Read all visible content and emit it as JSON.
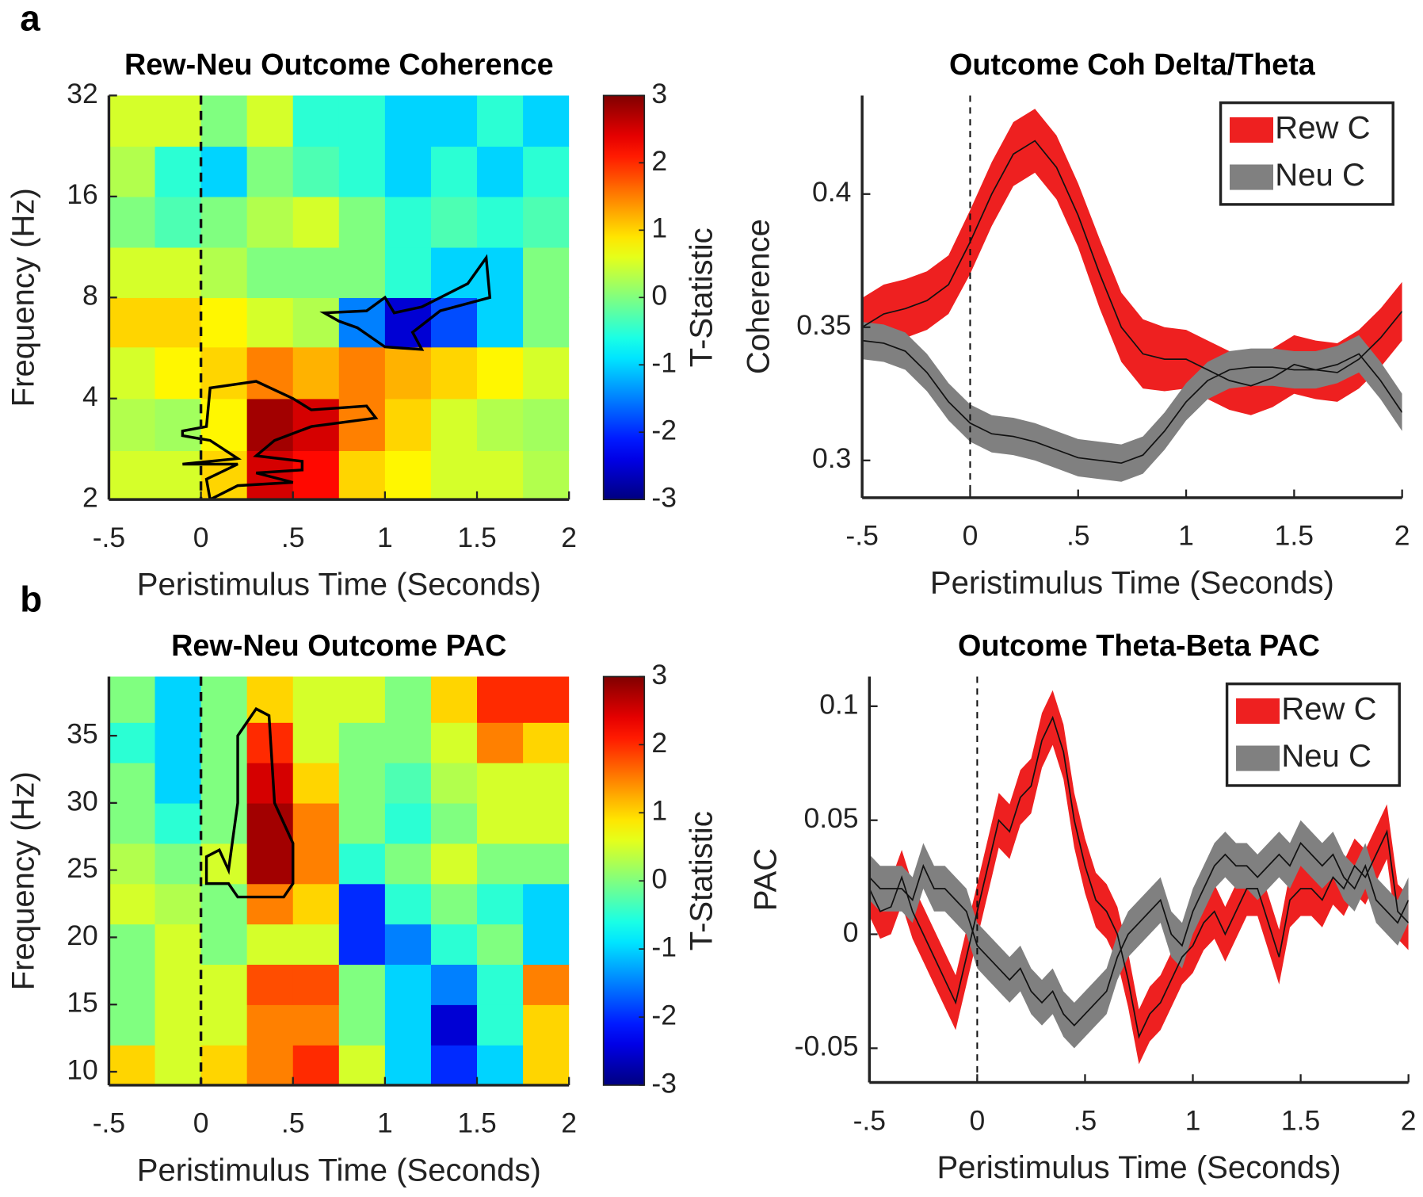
{
  "chart_data": [
    {
      "type": "heatmap",
      "panel": "a",
      "title": "Rew-Neu Outcome Coherence",
      "xlabel": "Peristimulus Time (Seconds)",
      "ylabel": "Frequency (Hz)",
      "colorbar_label": "T-Statistic",
      "yscale": "log",
      "xlim": [
        -0.5,
        2
      ],
      "ylim": [
        2,
        32
      ],
      "xticks": [
        {
          "value": -0.5,
          "label": "-.5"
        },
        0,
        {
          "value": 0.5,
          "label": ".5"
        },
        1,
        1.5,
        2
      ],
      "yticks": [
        2,
        4,
        8,
        16,
        32
      ],
      "vline": 0,
      "clim": [
        -3,
        3
      ],
      "cticks": [
        -3,
        -2,
        -1,
        0,
        1,
        2,
        3
      ],
      "x_edges": [
        -0.5,
        -0.25,
        0,
        0.25,
        0.5,
        0.75,
        1,
        1.25,
        1.5,
        1.75,
        2
      ],
      "y_edges": [
        2,
        2.8,
        4,
        5.7,
        8,
        11.3,
        16,
        22.6,
        32
      ],
      "z": [
        [
          0.5,
          0.5,
          1,
          2.5,
          2.2,
          1,
          0.8,
          0.5,
          0.5,
          0.3
        ],
        [
          0.3,
          0.2,
          0.8,
          2.8,
          2.5,
          1.5,
          1,
          0.5,
          0.3,
          0.2
        ],
        [
          0.5,
          0.8,
          1,
          1.5,
          1.2,
          1.5,
          1.2,
          1,
          0.8,
          0.5
        ],
        [
          1,
          1,
          0.8,
          0.5,
          0.3,
          -1.5,
          -2.5,
          -1.8,
          -1,
          0
        ],
        [
          0.5,
          0.5,
          0.3,
          0,
          0,
          0,
          -0.5,
          -1,
          -1,
          0
        ],
        [
          0,
          -0.3,
          0,
          0.3,
          0.5,
          0,
          -0.5,
          -0.3,
          -0.5,
          -0.3
        ],
        [
          0.3,
          -0.5,
          -1,
          0,
          -0.3,
          -0.5,
          -1,
          -0.5,
          -1,
          -0.5
        ],
        [
          0.5,
          0.5,
          0,
          0.5,
          -0.5,
          -0.5,
          -1,
          -1,
          -0.5,
          -1
        ]
      ],
      "clusters": [
        [
          [
            -0.1,
            3.2
          ],
          [
            0.03,
            3.3
          ],
          [
            0.05,
            4.3
          ],
          [
            0.3,
            4.5
          ],
          [
            0.5,
            4.0
          ],
          [
            0.6,
            3.7
          ],
          [
            0.9,
            3.8
          ],
          [
            0.95,
            3.5
          ],
          [
            0.6,
            3.3
          ],
          [
            0.4,
            3.0
          ],
          [
            0.3,
            2.7
          ],
          [
            0.55,
            2.6
          ],
          [
            0.55,
            2.45
          ],
          [
            0.3,
            2.4
          ],
          [
            0.5,
            2.25
          ],
          [
            0.2,
            2.2
          ],
          [
            0.05,
            2.0
          ],
          [
            0.03,
            2.3
          ],
          [
            0.2,
            2.55
          ],
          [
            -0.1,
            2.55
          ],
          [
            0.2,
            2.65
          ],
          [
            0.05,
            3.0
          ],
          [
            -0.1,
            3.1
          ]
        ],
        [
          [
            0.67,
            7.2
          ],
          [
            0.9,
            7.3
          ],
          [
            1.0,
            8.0
          ],
          [
            1.05,
            7.2
          ],
          [
            1.2,
            7.5
          ],
          [
            1.45,
            8.8
          ],
          [
            1.55,
            10.5
          ],
          [
            1.57,
            8.0
          ],
          [
            1.3,
            7.3
          ],
          [
            1.15,
            6.3
          ],
          [
            1.2,
            5.6
          ],
          [
            1.0,
            5.7
          ],
          [
            0.85,
            6.5
          ],
          [
            0.75,
            6.8
          ]
        ]
      ]
    },
    {
      "type": "line",
      "title": "Outcome Coh Delta/Theta",
      "xlabel": "Peristimulus Time (Seconds)",
      "ylabel": "Coherence",
      "legend": "northeast",
      "xlim": [
        -0.5,
        2
      ],
      "ylim": [
        0.286,
        0.437
      ],
      "xticks": [
        {
          "value": -0.5,
          "label": "-.5"
        },
        0,
        {
          "value": 0.5,
          "label": ".5"
        },
        1,
        1.5,
        2
      ],
      "yticks": [
        0.3,
        0.35,
        0.4
      ],
      "vline": 0,
      "x": [
        -0.5,
        -0.4,
        -0.3,
        -0.2,
        -0.1,
        0,
        0.1,
        0.2,
        0.3,
        0.4,
        0.5,
        0.6,
        0.7,
        0.8,
        0.9,
        1,
        1.1,
        1.2,
        1.3,
        1.4,
        1.5,
        1.6,
        1.7,
        1.8,
        1.9,
        2
      ],
      "series": [
        {
          "name": "Rew C",
          "color": "#ee2020",
          "values": [
            0.35,
            0.355,
            0.357,
            0.36,
            0.366,
            0.382,
            0.4,
            0.415,
            0.42,
            0.41,
            0.392,
            0.37,
            0.35,
            0.34,
            0.338,
            0.338,
            0.334,
            0.33,
            0.328,
            0.331,
            0.336,
            0.334,
            0.333,
            0.338,
            0.346,
            0.356
          ],
          "error": [
            0.011,
            0.011,
            0.011,
            0.011,
            0.011,
            0.012,
            0.012,
            0.012,
            0.012,
            0.012,
            0.012,
            0.013,
            0.013,
            0.013,
            0.012,
            0.011,
            0.011,
            0.011,
            0.011,
            0.011,
            0.011,
            0.011,
            0.011,
            0.011,
            0.011,
            0.011
          ]
        },
        {
          "name": "Neu C",
          "color": "#808080",
          "values": [
            0.345,
            0.344,
            0.341,
            0.333,
            0.322,
            0.314,
            0.31,
            0.309,
            0.307,
            0.304,
            0.301,
            0.3,
            0.299,
            0.302,
            0.311,
            0.322,
            0.33,
            0.334,
            0.335,
            0.335,
            0.334,
            0.334,
            0.336,
            0.34,
            0.33,
            0.318
          ],
          "error": [
            0.007,
            0.007,
            0.007,
            0.007,
            0.007,
            0.007,
            0.007,
            0.007,
            0.007,
            0.007,
            0.007,
            0.007,
            0.007,
            0.007,
            0.007,
            0.007,
            0.007,
            0.007,
            0.007,
            0.007,
            0.007,
            0.007,
            0.007,
            0.007,
            0.007,
            0.007
          ]
        }
      ]
    },
    {
      "type": "heatmap",
      "panel": "b",
      "title": "Rew-Neu Outcome PAC",
      "xlabel": "Peristimulus Time (Seconds)",
      "ylabel": "Frequency (Hz)",
      "colorbar_label": "T-Statistic",
      "xlim": [
        -0.5,
        2
      ],
      "ylim": [
        9,
        39.4
      ],
      "xticks": [
        {
          "value": -0.5,
          "label": "-.5"
        },
        0,
        {
          "value": 0.5,
          "label": ".5"
        },
        1,
        1.5,
        2
      ],
      "yticks": [
        10,
        15,
        20,
        25,
        30,
        35
      ],
      "vline": 0,
      "clim": [
        -3,
        3
      ],
      "cticks": [
        -3,
        -2,
        -1,
        0,
        1,
        2,
        3
      ],
      "x_edges": [
        -0.5,
        -0.25,
        0,
        0.25,
        0.5,
        0.75,
        1,
        1.25,
        1.5,
        1.75,
        2
      ],
      "y_edges": [
        9,
        12,
        15,
        18,
        21,
        24,
        27,
        30,
        33,
        36,
        39.4
      ],
      "z": [
        [
          1,
          0.5,
          1,
          1.5,
          2,
          0.5,
          -1,
          -2,
          -1,
          1
        ],
        [
          0,
          0.5,
          0.5,
          1.5,
          1.5,
          0,
          -1,
          -2.5,
          -0.5,
          1
        ],
        [
          0,
          0.5,
          0.5,
          1.8,
          1.8,
          0,
          -1,
          -1.5,
          -0.5,
          1.5
        ],
        [
          0,
          0.5,
          0,
          0.5,
          0.5,
          -2,
          -1.5,
          -0.5,
          0,
          -1
        ],
        [
          0.5,
          0.3,
          0,
          1.5,
          1,
          -2,
          -0.5,
          0,
          -0.5,
          -1
        ],
        [
          0.3,
          0,
          0.5,
          2.8,
          1.5,
          -0.5,
          0,
          0.5,
          0,
          0
        ],
        [
          0,
          -0.5,
          0,
          2.8,
          1.5,
          0,
          -0.5,
          0,
          0.5,
          0.5
        ],
        [
          0,
          -1,
          0,
          2.5,
          1,
          0,
          -0.3,
          0.3,
          0.5,
          0.5
        ],
        [
          -0.5,
          -1,
          0,
          2,
          0.5,
          0,
          0,
          0.5,
          1.5,
          1
        ],
        [
          0,
          -1,
          0,
          1,
          0.5,
          0.5,
          0,
          1,
          2,
          2
        ]
      ],
      "clusters": [
        [
          [
            0.3,
            37
          ],
          [
            0.37,
            36.5
          ],
          [
            0.4,
            30
          ],
          [
            0.5,
            27
          ],
          [
            0.5,
            24
          ],
          [
            0.45,
            23
          ],
          [
            0.2,
            23
          ],
          [
            0.15,
            24
          ],
          [
            0.03,
            24
          ],
          [
            0.03,
            26
          ],
          [
            0.1,
            26.5
          ],
          [
            0.15,
            25
          ],
          [
            0.2,
            30
          ],
          [
            0.2,
            35
          ],
          [
            0.25,
            36
          ]
        ]
      ]
    },
    {
      "type": "line",
      "title": "Outcome Theta-Beta PAC",
      "xlabel": "Peristimulus Time (Seconds)",
      "ylabel": "PAC",
      "legend": "northeast",
      "xlim": [
        -0.5,
        2
      ],
      "ylim": [
        -0.065,
        0.113
      ],
      "xticks": [
        {
          "value": -0.5,
          "label": "-.5"
        },
        0,
        {
          "value": 0.5,
          "label": ".5"
        },
        1,
        1.5,
        2
      ],
      "yticks": [
        {
          "value": -0.05,
          "label": "-0.05"
        },
        0,
        0.05,
        0.1
      ],
      "vline": 0,
      "x": [
        -0.5,
        -0.45,
        -0.4,
        -0.35,
        -0.3,
        -0.25,
        -0.2,
        -0.15,
        -0.1,
        -0.05,
        0,
        0.05,
        0.1,
        0.15,
        0.2,
        0.25,
        0.3,
        0.35,
        0.4,
        0.45,
        0.5,
        0.55,
        0.6,
        0.65,
        0.7,
        0.75,
        0.8,
        0.85,
        0.9,
        0.95,
        1,
        1.05,
        1.1,
        1.15,
        1.2,
        1.25,
        1.3,
        1.35,
        1.4,
        1.45,
        1.5,
        1.55,
        1.6,
        1.65,
        1.7,
        1.75,
        1.8,
        1.85,
        1.9,
        1.95,
        2
      ],
      "series": [
        {
          "name": "Rew C",
          "color": "#ee2020",
          "values": [
            0.02,
            0.01,
            0.012,
            0.025,
            0.01,
            0,
            -0.01,
            -0.02,
            -0.03,
            -0.01,
            0.01,
            0.03,
            0.05,
            0.045,
            0.06,
            0.065,
            0.085,
            0.095,
            0.08,
            0.05,
            0.03,
            0.015,
            0.01,
            0,
            -0.02,
            -0.045,
            -0.035,
            -0.03,
            -0.02,
            -0.01,
            -0.005,
            0.005,
            0.01,
            0,
            0.01,
            0.02,
            0.02,
            0.005,
            -0.01,
            0.015,
            0.02,
            0.02,
            0.015,
            0.025,
            0.02,
            0.03,
            0.025,
            0.035,
            0.045,
            0.01,
            0.005
          ],
          "error": [
            0.012,
            0.012,
            0.012,
            0.012,
            0.012,
            0.012,
            0.012,
            0.012,
            0.012,
            0.012,
            0.012,
            0.012,
            0.012,
            0.012,
            0.012,
            0.012,
            0.012,
            0.012,
            0.012,
            0.012,
            0.012,
            0.012,
            0.012,
            0.012,
            0.012,
            0.012,
            0.012,
            0.012,
            0.012,
            0.012,
            0.012,
            0.012,
            0.012,
            0.012,
            0.012,
            0.012,
            0.012,
            0.012,
            0.012,
            0.012,
            0.012,
            0.012,
            0.012,
            0.012,
            0.012,
            0.012,
            0.012,
            0.012,
            0.012,
            0.012,
            0.012
          ]
        },
        {
          "name": "Neu C",
          "color": "#808080",
          "values": [
            0.025,
            0.02,
            0.02,
            0.02,
            0.015,
            0.03,
            0.02,
            0.02,
            0.015,
            0.01,
            -0.005,
            -0.01,
            -0.015,
            -0.02,
            -0.015,
            -0.025,
            -0.03,
            -0.025,
            -0.035,
            -0.04,
            -0.035,
            -0.03,
            -0.025,
            -0.01,
            0,
            0.005,
            0.01,
            0.015,
            0,
            -0.005,
            0.01,
            0.02,
            0.03,
            0.035,
            0.03,
            0.03,
            0.025,
            0.03,
            0.035,
            0.03,
            0.04,
            0.035,
            0.03,
            0.035,
            0.025,
            0.02,
            0.03,
            0.015,
            0.01,
            0.005,
            0.015
          ],
          "error": [
            0.01,
            0.01,
            0.01,
            0.01,
            0.01,
            0.01,
            0.01,
            0.01,
            0.01,
            0.01,
            0.01,
            0.01,
            0.01,
            0.01,
            0.01,
            0.01,
            0.01,
            0.01,
            0.01,
            0.01,
            0.01,
            0.01,
            0.01,
            0.01,
            0.01,
            0.01,
            0.01,
            0.01,
            0.01,
            0.01,
            0.01,
            0.01,
            0.01,
            0.01,
            0.01,
            0.01,
            0.01,
            0.01,
            0.01,
            0.01,
            0.01,
            0.01,
            0.01,
            0.01,
            0.01,
            0.01,
            0.01,
            0.01,
            0.01,
            0.01,
            0.01
          ]
        }
      ]
    }
  ]
}
